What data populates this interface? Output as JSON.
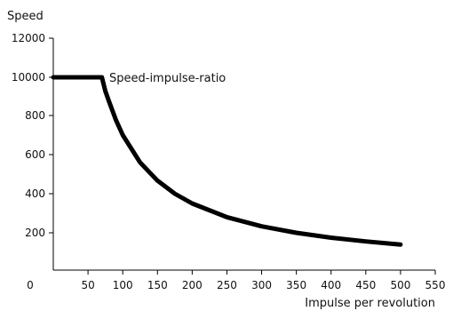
{
  "chart_data": {
    "type": "line",
    "title": "",
    "ylabel": "Speed",
    "xlabel": "Impulse per revolution",
    "x_ticks": [
      0,
      50,
      100,
      150,
      200,
      250,
      300,
      350,
      400,
      450,
      500,
      550
    ],
    "y_ticks": [
      200,
      400,
      600,
      800,
      10000,
      12000
    ],
    "xlim": [
      0,
      550
    ],
    "grid": false,
    "legend": "none",
    "annotation": "Speed-impulse-ratio",
    "line_color": "#000000",
    "series": [
      {
        "x": [
          0,
          70,
          75,
          80,
          90,
          100,
          125,
          150,
          175,
          200,
          250,
          300,
          350,
          400,
          450,
          500
        ],
        "y": [
          10000,
          10000,
          925,
          875,
          778,
          700,
          560,
          467,
          400,
          350,
          280,
          233,
          200,
          175,
          156,
          140
        ]
      }
    ]
  }
}
